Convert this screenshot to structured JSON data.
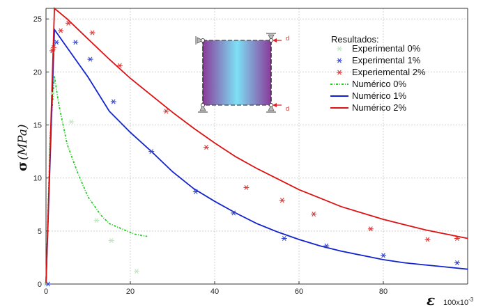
{
  "chart_data": {
    "type": "line",
    "title": "",
    "ylabel_symbol": "σ",
    "ylabel_unit": "(MPa)",
    "xlabel_symbol": "ε",
    "x_scale_note": "100x10",
    "x_scale_exp": "-3",
    "xlim": [
      0,
      100
    ],
    "ylim": [
      0,
      26
    ],
    "xticks": [
      0,
      20,
      40,
      60,
      80
    ],
    "yticks": [
      0,
      5,
      10,
      15,
      20,
      25
    ],
    "grid": true,
    "legend_position": "top-right",
    "legend_title": "Resultados:",
    "series": [
      {
        "name": "Experimental 0%",
        "kind": "scatter",
        "color": "#bfe5bf",
        "marker": "asterisk",
        "points": [
          [
            0,
            0
          ],
          [
            1.5,
            18
          ],
          [
            6,
            15.3
          ],
          [
            12,
            6
          ],
          [
            15.5,
            4.1
          ],
          [
            21.5,
            1.2
          ]
        ]
      },
      {
        "name": "Experimental 1%",
        "kind": "scatter",
        "color": "#3344cc",
        "marker": "asterisk",
        "points": [
          [
            0.5,
            0
          ],
          [
            2.5,
            22.8
          ],
          [
            7,
            22.8
          ],
          [
            10.5,
            21.2
          ],
          [
            16,
            17.2
          ],
          [
            25,
            12.5
          ],
          [
            35.5,
            8.7
          ],
          [
            44.5,
            6.7
          ],
          [
            56.5,
            4.3
          ],
          [
            66.5,
            3.6
          ],
          [
            80,
            2.7
          ],
          [
            97.5,
            2.0
          ]
        ]
      },
      {
        "name": "Experiemental 2%",
        "kind": "scatter",
        "color": "#dd3333",
        "marker": "asterisk",
        "points": [
          [
            1.5,
            22
          ],
          [
            1.8,
            22.3
          ],
          [
            3.5,
            23.9
          ],
          [
            5.3,
            24.6
          ],
          [
            11,
            23.7
          ],
          [
            17.5,
            20.6
          ],
          [
            28.5,
            16.3
          ],
          [
            38,
            12.9
          ],
          [
            47.5,
            9.1
          ],
          [
            56,
            7.9
          ],
          [
            63.5,
            6.6
          ],
          [
            77,
            5.2
          ],
          [
            90.5,
            4.2
          ],
          [
            97.5,
            4.3
          ]
        ]
      },
      {
        "name": "Numérico 0%",
        "kind": "line",
        "style": "dashdot",
        "color": "#22cc22",
        "points": [
          [
            0,
            0
          ],
          [
            1,
            14
          ],
          [
            2,
            19.6
          ],
          [
            3,
            17
          ],
          [
            5,
            13.2
          ],
          [
            7.5,
            10.5
          ],
          [
            10,
            8.2
          ],
          [
            13,
            6.5
          ],
          [
            15,
            5.7
          ],
          [
            18,
            5.2
          ],
          [
            21,
            4.7
          ],
          [
            24,
            4.5
          ]
        ]
      },
      {
        "name": "Numérico 1%",
        "kind": "line",
        "style": "solid",
        "color": "#1122cc",
        "points": [
          [
            0,
            0
          ],
          [
            2,
            24
          ],
          [
            5,
            22.3
          ],
          [
            10,
            19.5
          ],
          [
            15,
            16.3
          ],
          [
            20,
            14.3
          ],
          [
            25,
            12.5
          ],
          [
            30,
            10.6
          ],
          [
            35,
            9.0
          ],
          [
            40,
            7.8
          ],
          [
            45,
            6.7
          ],
          [
            50,
            5.7
          ],
          [
            55,
            4.9
          ],
          [
            60,
            4.2
          ],
          [
            65,
            3.6
          ],
          [
            70,
            3.1
          ],
          [
            75,
            2.7
          ],
          [
            80,
            2.3
          ],
          [
            85,
            2.0
          ],
          [
            90,
            1.8
          ],
          [
            95,
            1.6
          ],
          [
            100,
            1.4
          ]
        ]
      },
      {
        "name": "Numérico 2%",
        "kind": "line",
        "style": "solid",
        "color": "#dd1111",
        "points": [
          [
            0,
            0
          ],
          [
            2,
            26
          ],
          [
            5,
            25
          ],
          [
            10,
            23.1
          ],
          [
            15,
            21.2
          ],
          [
            20,
            19.4
          ],
          [
            25,
            17.8
          ],
          [
            30,
            16.2
          ],
          [
            35,
            14.7
          ],
          [
            40,
            13.3
          ],
          [
            45,
            12.0
          ],
          [
            50,
            10.9
          ],
          [
            55,
            9.9
          ],
          [
            60,
            8.9
          ],
          [
            65,
            8.1
          ],
          [
            70,
            7.3
          ],
          [
            75,
            6.7
          ],
          [
            80,
            6.1
          ],
          [
            85,
            5.6
          ],
          [
            90,
            5.1
          ],
          [
            95,
            4.7
          ],
          [
            100,
            4.3
          ]
        ]
      }
    ]
  },
  "inset": {
    "label_top": "d",
    "label_bottom": "d",
    "fill_edge": "#8a3a9a",
    "fill_center": "#7de0f5",
    "arrow_color": "#dd2222"
  }
}
